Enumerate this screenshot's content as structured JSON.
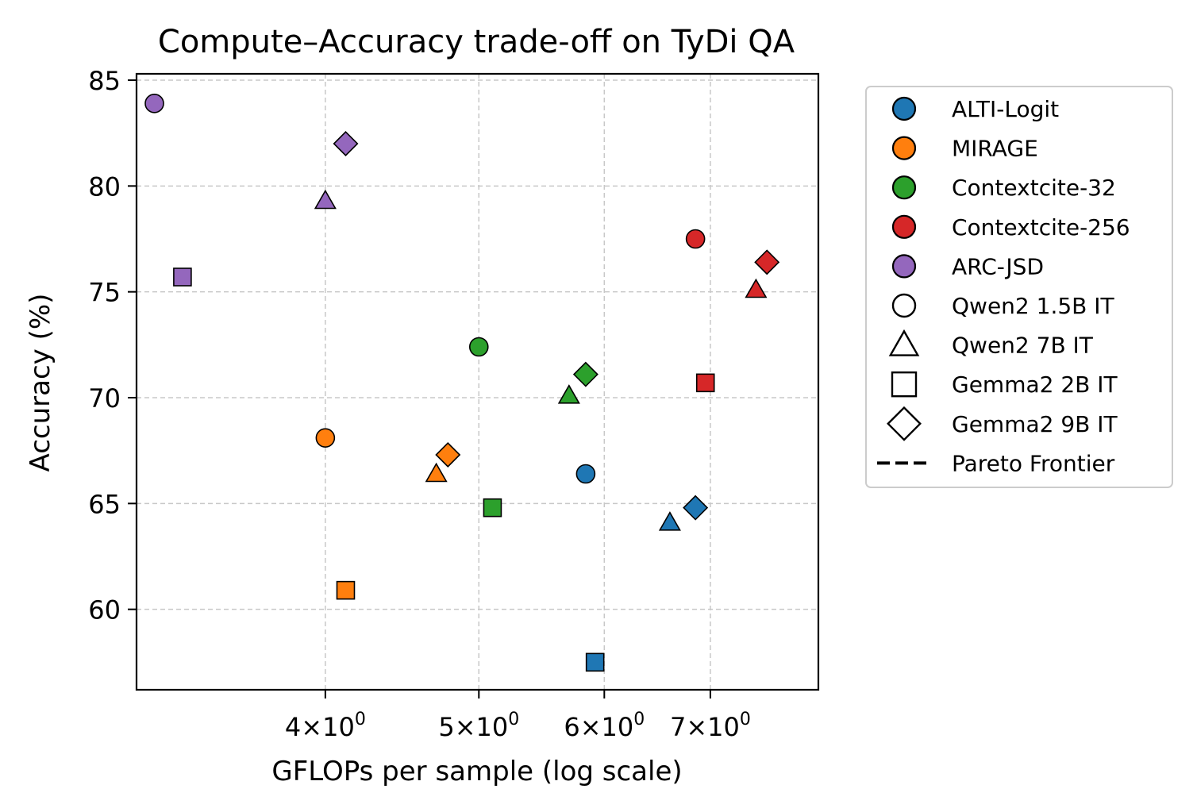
{
  "chart_data": {
    "type": "scatter",
    "title": "Compute–Accuracy trade-off on TyDi QA",
    "xlabel": "GFLOPs per sample (log scale)",
    "ylabel": "Accuracy (%)",
    "xscale": "log",
    "xlim": [
      3.04,
      8.19
    ],
    "ylim": [
      56.2,
      85.3
    ],
    "grid": true,
    "legend_position": "outside-right",
    "x_ticks": [
      {
        "value": 4,
        "mantissa": "4",
        "base": "10",
        "exp": "0"
      },
      {
        "value": 5,
        "mantissa": "5",
        "base": "10",
        "exp": "0"
      },
      {
        "value": 6,
        "mantissa": "6",
        "base": "10",
        "exp": "0"
      },
      {
        "value": 7,
        "mantissa": "7",
        "base": "10",
        "exp": "0"
      }
    ],
    "y_ticks": [
      {
        "value": 60,
        "label": "60"
      },
      {
        "value": 65,
        "label": "65"
      },
      {
        "value": 70,
        "label": "70"
      },
      {
        "value": 75,
        "label": "75"
      },
      {
        "value": 80,
        "label": "80"
      },
      {
        "value": 85,
        "label": "85"
      }
    ],
    "methods": [
      {
        "name": "ALTI-Logit",
        "color": "#1f77b4"
      },
      {
        "name": "MIRAGE",
        "color": "#ff7f0e"
      },
      {
        "name": "Contextcite-32",
        "color": "#2ca02c"
      },
      {
        "name": "Contextcite-256",
        "color": "#d62728"
      },
      {
        "name": "ARC-JSD",
        "color": "#9467bd"
      }
    ],
    "models": [
      {
        "name": "Qwen2 1.5B IT",
        "marker": "circle"
      },
      {
        "name": "Qwen2 7B IT",
        "marker": "triangle"
      },
      {
        "name": "Gemma2 2B IT",
        "marker": "square"
      },
      {
        "name": "Gemma2 9B IT",
        "marker": "diamond"
      }
    ],
    "pareto_label": "Pareto Frontier",
    "points": [
      {
        "method": "ARC-JSD",
        "model": "Qwen2 1.5B IT",
        "x": 3.12,
        "y": 83.9
      },
      {
        "method": "ARC-JSD",
        "model": "Gemma2 9B IT",
        "x": 4.12,
        "y": 82.0
      },
      {
        "method": "ARC-JSD",
        "model": "Qwen2 7B IT",
        "x": 4.0,
        "y": 79.3
      },
      {
        "method": "ARC-JSD",
        "model": "Gemma2 2B IT",
        "x": 3.25,
        "y": 75.7
      },
      {
        "method": "MIRAGE",
        "model": "Qwen2 1.5B IT",
        "x": 4.0,
        "y": 68.1
      },
      {
        "method": "MIRAGE",
        "model": "Gemma2 9B IT",
        "x": 4.78,
        "y": 67.3
      },
      {
        "method": "MIRAGE",
        "model": "Qwen2 7B IT",
        "x": 4.7,
        "y": 66.4
      },
      {
        "method": "MIRAGE",
        "model": "Gemma2 2B IT",
        "x": 4.12,
        "y": 60.9
      },
      {
        "method": "Contextcite-32",
        "model": "Qwen2 1.5B IT",
        "x": 5.0,
        "y": 72.4
      },
      {
        "method": "Contextcite-32",
        "model": "Gemma2 9B IT",
        "x": 5.84,
        "y": 71.1
      },
      {
        "method": "Contextcite-32",
        "model": "Qwen2 7B IT",
        "x": 5.7,
        "y": 70.1
      },
      {
        "method": "Contextcite-32",
        "model": "Gemma2 2B IT",
        "x": 5.1,
        "y": 64.8
      },
      {
        "method": "ALTI-Logit",
        "model": "Qwen2 1.5B IT",
        "x": 5.84,
        "y": 66.4
      },
      {
        "method": "ALTI-Logit",
        "model": "Gemma2 9B IT",
        "x": 6.85,
        "y": 64.8
      },
      {
        "method": "ALTI-Logit",
        "model": "Qwen2 7B IT",
        "x": 6.6,
        "y": 64.1
      },
      {
        "method": "ALTI-Logit",
        "model": "Gemma2 2B IT",
        "x": 5.92,
        "y": 57.5
      },
      {
        "method": "Contextcite-256",
        "model": "Qwen2 1.5B IT",
        "x": 6.85,
        "y": 77.5
      },
      {
        "method": "Contextcite-256",
        "model": "Gemma2 9B IT",
        "x": 7.6,
        "y": 76.4
      },
      {
        "method": "Contextcite-256",
        "model": "Qwen2 7B IT",
        "x": 7.48,
        "y": 75.1
      },
      {
        "method": "Contextcite-256",
        "model": "Gemma2 2B IT",
        "x": 6.95,
        "y": 70.7
      }
    ]
  }
}
